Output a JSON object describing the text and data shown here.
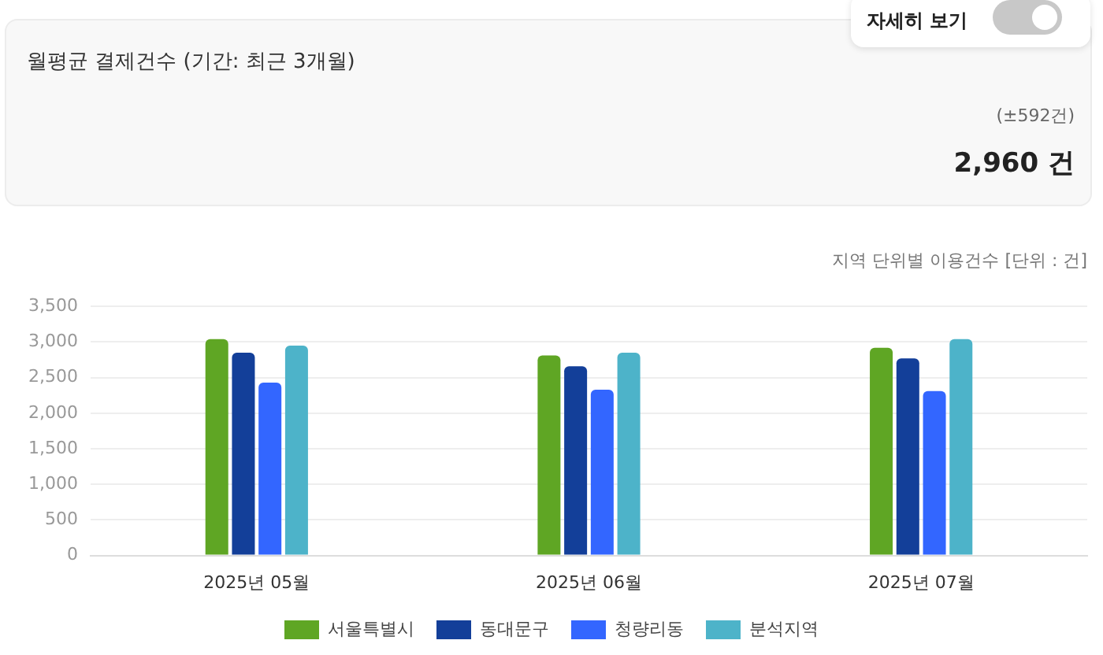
{
  "chart_data": {
    "type": "bar",
    "annotations": [
      "월평균 결제건수 (기간: 최근 3개월)",
      "(±592건)",
      "2,960 건",
      "자세히 보기",
      "지역 단위별 이용건수 [단위 : 건]"
    ],
    "categories": [
      "2025년 05월",
      "2025년 06월",
      "2025년 07월"
    ],
    "series": [
      {
        "name": "서울특별시",
        "color": "#5fa624",
        "values": [
          3040,
          2810,
          2920
        ]
      },
      {
        "name": "동대문구",
        "color": "#133f99",
        "values": [
          2850,
          2660,
          2770
        ]
      },
      {
        "name": "청량리동",
        "color": "#3366ff",
        "values": [
          2430,
          2330,
          2310
        ]
      },
      {
        "name": "분석지역",
        "color": "#4db3c9",
        "values": [
          2950,
          2850,
          3040
        ]
      }
    ],
    "ylim": [
      0,
      3500
    ],
    "yticks": [
      0,
      500,
      {
        "value": 1000,
        "label": "1,000"
      },
      {
        "value": 1500,
        "label": "1,500"
      },
      {
        "value": 2000,
        "label": "2,000"
      },
      {
        "value": 2500,
        "label": "2,500"
      },
      {
        "value": 3000,
        "label": "3,000"
      },
      {
        "value": 3500,
        "label": "3,500"
      }
    ],
    "grid": "y",
    "legend": "bottom"
  }
}
